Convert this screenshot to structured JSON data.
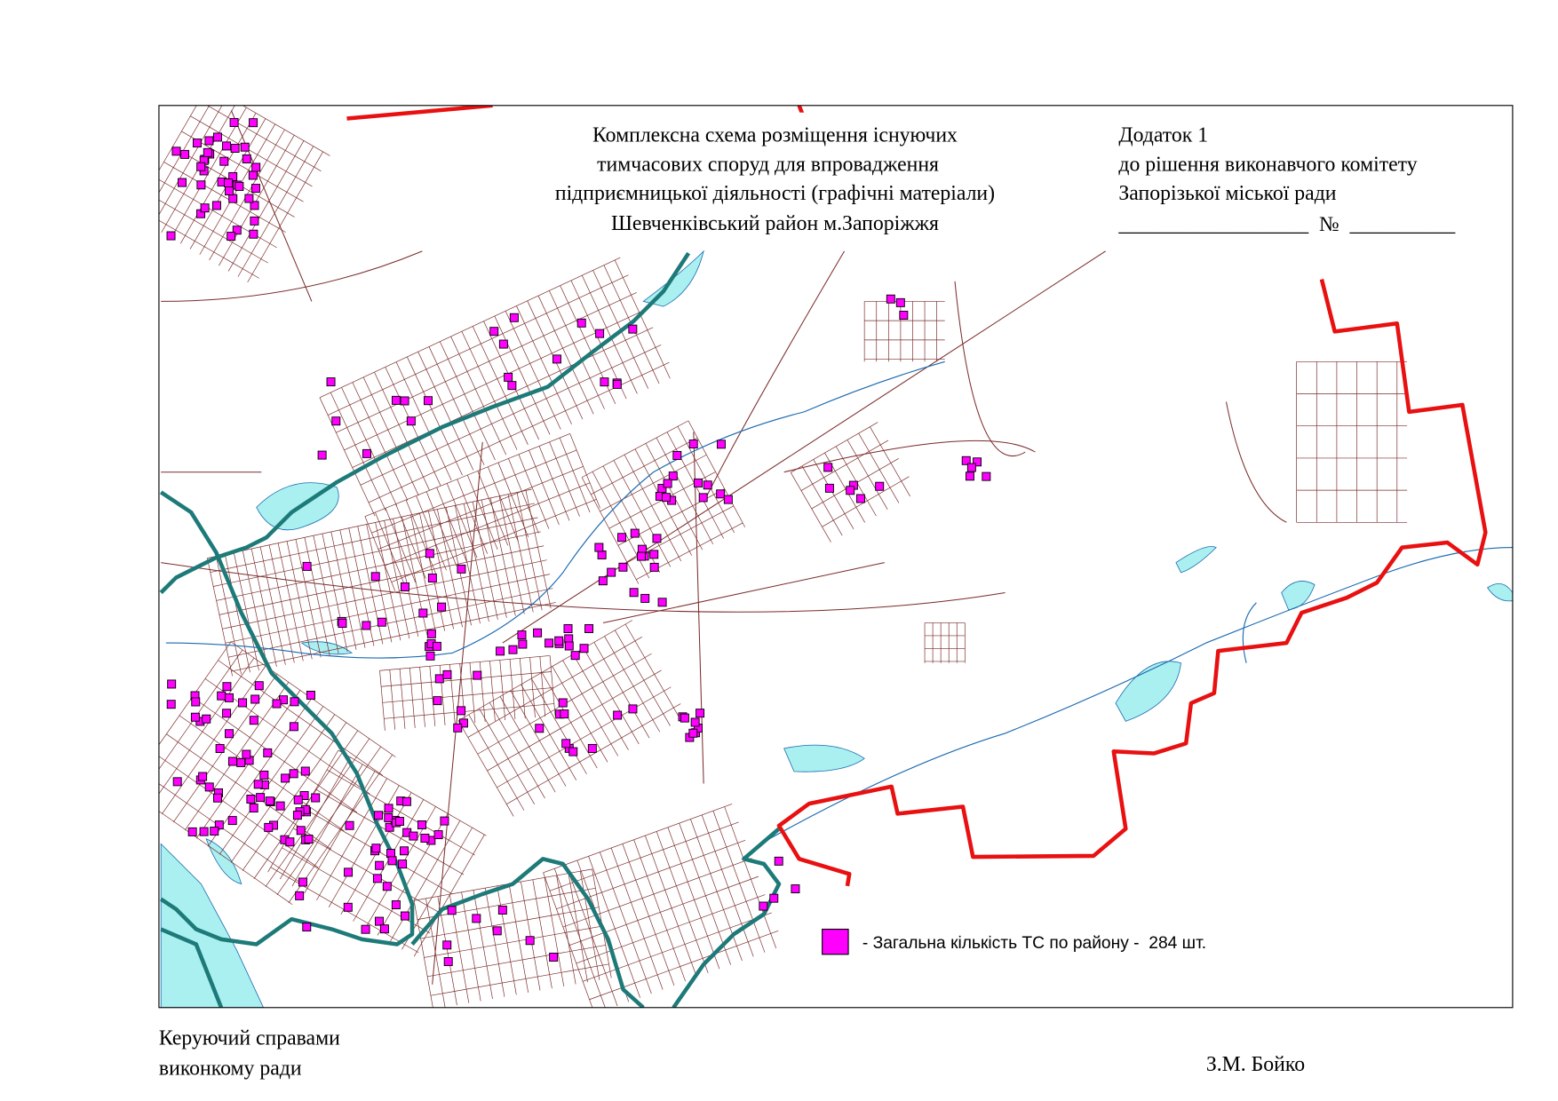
{
  "title": {
    "lines": [
      "Комплексна схема розміщення існуючих",
      "тимчасових споруд для впровадження",
      "підприємницької діяльності (графічні матеріали)",
      "Шевченківський район м.Запоріжжя"
    ]
  },
  "annex": {
    "lines": [
      "Додаток 1",
      "до рішення виконавчого комітету",
      "Запорізької міської ради",
      "__________________  №  __________"
    ]
  },
  "legend": {
    "label": "- Загальна кількість ТС по району -  284 шт."
  },
  "footer": {
    "position_lines": [
      "Керуючий справами",
      "виконкому ради"
    ],
    "signature": "З.М. Бойко"
  }
}
